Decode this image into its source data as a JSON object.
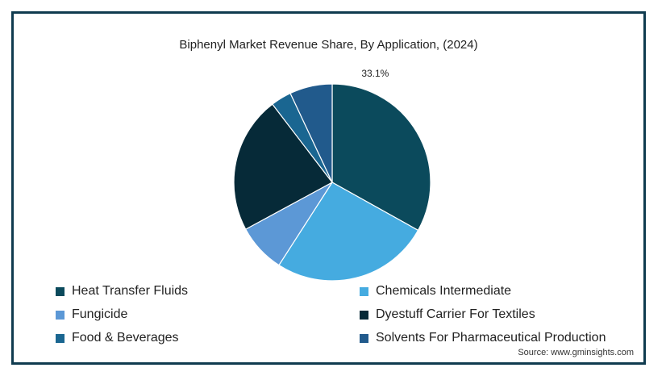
{
  "chart_data": {
    "type": "pie",
    "title": "Biphenyl Market Revenue Share, By Application, (2024)",
    "slices": [
      {
        "name": "Heat Transfer Fluids",
        "value": 33.1,
        "color": "#0b4a5c",
        "label": "33.1%"
      },
      {
        "name": "Chemicals Intermediate",
        "value": 26.0,
        "color": "#45abe0",
        "label": ""
      },
      {
        "name": "Fungicide",
        "value": 8.0,
        "color": "#5c98d6",
        "label": ""
      },
      {
        "name": "Dyestuff Carrier For Textiles",
        "value": 22.5,
        "color": "#062a38",
        "label": ""
      },
      {
        "name": "Food & Beverages",
        "value": 3.4,
        "color": "#1a6691",
        "label": ""
      },
      {
        "name": "Solvents For Pharmaceutical Production",
        "value": 7.0,
        "color": "#215a8c",
        "label": ""
      }
    ],
    "start_angle_deg": 0,
    "legend_position": "bottom"
  },
  "source_text": "Source: www.gminsights.com"
}
